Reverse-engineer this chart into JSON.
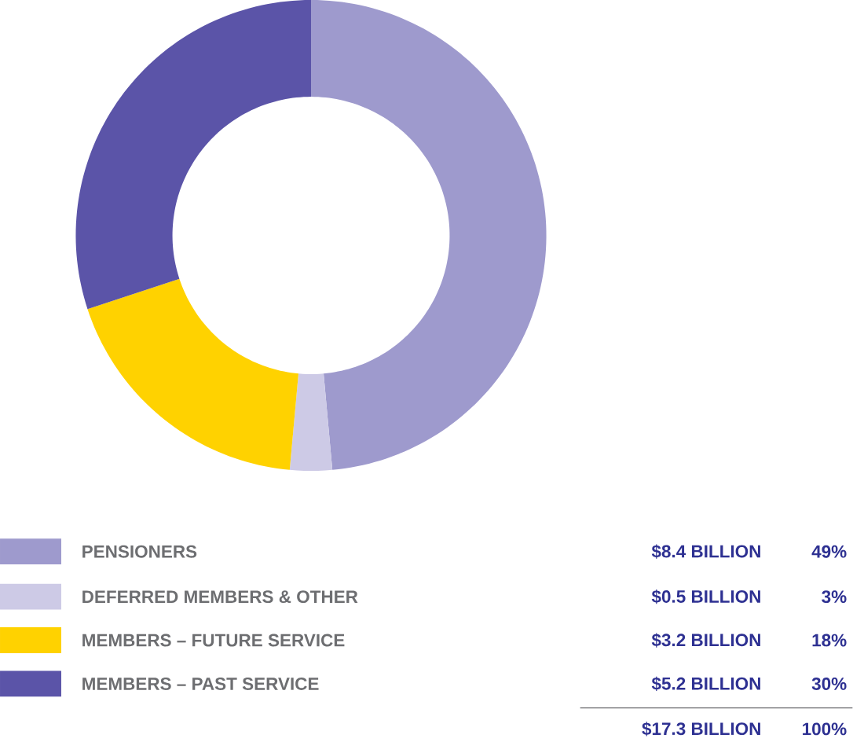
{
  "chart_data": {
    "type": "donut",
    "categories": [
      "PENSIONERS",
      "DEFERRED MEMBERS & OTHER",
      "MEMBERS – FUTURE SERVICE",
      "MEMBERS – PAST SERVICE"
    ],
    "values": [
      8.4,
      0.5,
      3.2,
      5.2
    ],
    "colors": [
      "#9e9acd",
      "#cdcae6",
      "#ffd200",
      "#5b54a8"
    ],
    "value_labels": [
      "$8.4 BILLION",
      "$0.5 BILLION",
      "$3.2 BILLION",
      "$5.2 BILLION"
    ],
    "annotations": [
      "49%",
      "3%",
      "18%",
      "30%",
      "$17.3 BILLION",
      "100%"
    ],
    "legend": "bottom"
  }
}
